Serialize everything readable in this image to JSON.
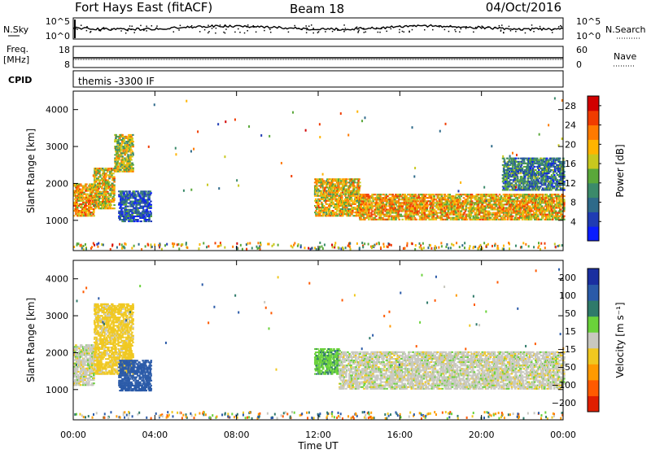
{
  "header": {
    "station": "Fort Hays East (fitACF)",
    "beam": "Beam 18",
    "date": "04/Oct/2016"
  },
  "top_panels": {
    "nsky_label": "N.Sky",
    "nsky_ticks": [
      "10^5",
      "10^0"
    ],
    "nsearch_label": "N.Search",
    "freq_label": "Freq.",
    "freq_unit": "[MHz]",
    "freq_ticks": [
      "18",
      "8"
    ],
    "nave_label": "Nave",
    "nave_ticks": [
      "60",
      "0"
    ],
    "cpid_label": "CPID",
    "cpid_text": "themis -3300 IF"
  },
  "axes": {
    "xlabel": "Time UT",
    "ylabel": "Slant Range [km]",
    "x_ticks": [
      "00:00",
      "04:00",
      "08:00",
      "12:00",
      "16:00",
      "20:00",
      "00:00"
    ],
    "y_ticks": [
      "1000",
      "2000",
      "3000",
      "4000"
    ]
  },
  "colorbars": {
    "power": {
      "label": "Power [dB]",
      "ticks": [
        "4",
        "8",
        "12",
        "16",
        "20",
        "24",
        "28"
      ]
    },
    "velocity": {
      "label": "Velocity [m s⁻¹]",
      "ticks": [
        "200",
        "100",
        "50",
        "15",
        "−15",
        "−50",
        "−100",
        "−200"
      ]
    }
  },
  "colors": {
    "power_scale": [
      "#0a1dff",
      "#1f3cb4",
      "#2e6a8a",
      "#3b8a6a",
      "#5aa83a",
      "#c8c81e",
      "#ffb400",
      "#ff7a00",
      "#f03c00",
      "#d20000"
    ],
    "velocity_scale": [
      "#1a2fa0",
      "#2a5aa8",
      "#2f7a6a",
      "#6ad23a",
      "#c8c8c0",
      "#f0c820",
      "#ff9a00",
      "#ff5a00",
      "#e01e00"
    ]
  },
  "chart_data": [
    {
      "type": "heatmap",
      "title": "Power [dB]",
      "xlabel": "Time UT",
      "ylabel": "Slant Range [km]",
      "xlim": [
        0,
        24
      ],
      "ylim": [
        180,
        4500
      ],
      "color_range": [
        0,
        30
      ],
      "echo_regions": [
        {
          "t_start": 0.0,
          "t_end": 1.0,
          "range_low": 1100,
          "range_high": 2000,
          "power_db": 20
        },
        {
          "t_start": 1.0,
          "t_end": 2.0,
          "range_low": 1300,
          "range_high": 2400,
          "power_db": 18
        },
        {
          "t_start": 2.0,
          "t_end": 2.9,
          "range_low": 2300,
          "range_high": 3300,
          "power_db": 16
        },
        {
          "t_start": 2.2,
          "t_end": 3.8,
          "range_low": 950,
          "range_high": 1800,
          "power_db": 6
        },
        {
          "t_start": 11.8,
          "t_end": 14.0,
          "range_low": 1100,
          "range_high": 2100,
          "power_db": 18
        },
        {
          "t_start": 14.0,
          "t_end": 18.0,
          "range_low": 1000,
          "range_high": 1700,
          "power_db": 20
        },
        {
          "t_start": 18.0,
          "t_end": 24.0,
          "range_low": 1000,
          "range_high": 1700,
          "power_db": 19
        },
        {
          "t_start": 21.0,
          "t_end": 24.0,
          "range_low": 1800,
          "range_high": 2700,
          "power_db": 9
        }
      ]
    },
    {
      "type": "heatmap",
      "title": "Velocity [m s⁻¹]",
      "xlabel": "Time UT",
      "ylabel": "Slant Range [km]",
      "xlim": [
        0,
        24
      ],
      "ylim": [
        180,
        4500
      ],
      "color_range": [
        -200,
        200
      ],
      "echo_regions": [
        {
          "t_start": 0.0,
          "t_end": 1.0,
          "range_low": 1100,
          "range_high": 2200,
          "velocity": 0
        },
        {
          "t_start": 1.0,
          "t_end": 2.9,
          "range_low": 1400,
          "range_high": 3300,
          "velocity": -30
        },
        {
          "t_start": 2.2,
          "t_end": 3.8,
          "range_low": 950,
          "range_high": 1800,
          "velocity": 150
        },
        {
          "t_start": 11.8,
          "t_end": 13.0,
          "range_low": 1400,
          "range_high": 2100,
          "velocity": 40
        },
        {
          "t_start": 13.0,
          "t_end": 24.0,
          "range_low": 1000,
          "range_high": 2000,
          "velocity": 0
        }
      ]
    }
  ]
}
